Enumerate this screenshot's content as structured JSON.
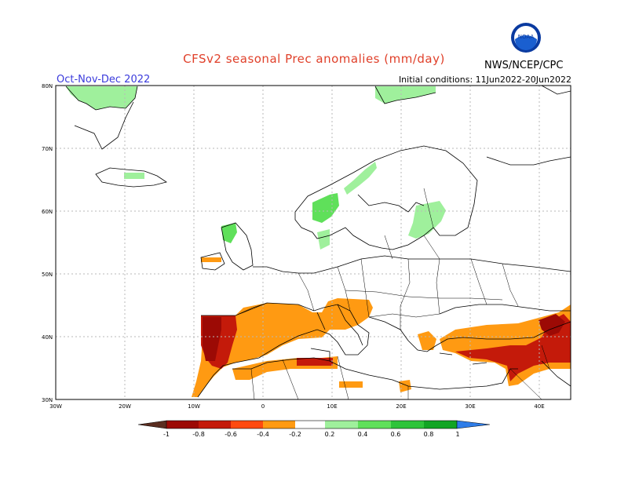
{
  "header": {
    "title": "CFSv2 seasonal Prec anomalies (mm/day)",
    "season": "Oct-Nov-Dec 2022",
    "initial_conditions": "Initial conditions: 11Jun2022-20Jun2022",
    "agency": "NWS/NCEP/CPC",
    "logo_text": "NOAA"
  },
  "axes": {
    "lat_labels": [
      "80N",
      "70N",
      "60N",
      "50N",
      "40N",
      "30N"
    ],
    "lon_labels": [
      "30W",
      "20W",
      "10W",
      "0",
      "10E",
      "20E",
      "30E",
      "40E"
    ]
  },
  "legend": {
    "labels": [
      "-1",
      "-0.8",
      "-0.6",
      "-0.4",
      "-0.2",
      "0.2",
      "0.4",
      "0.6",
      "0.8",
      "1"
    ],
    "colors": [
      "#5a2d20",
      "#9c0a05",
      "#c41a0a",
      "#ff4a10",
      "#ff9a12",
      "#ffffff",
      "#9ff09c",
      "#5fe05a",
      "#2ec43a",
      "#12a524",
      "#2f7de8"
    ]
  },
  "colors": {
    "dry_strong": "#9c0a05",
    "dry_medium": "#c41a0a",
    "dry_light": "#ff9a12",
    "wet_light": "#9ff09c",
    "wet_medium": "#5fe05a",
    "title": "#e0402a",
    "season": "#3a3adc"
  }
}
